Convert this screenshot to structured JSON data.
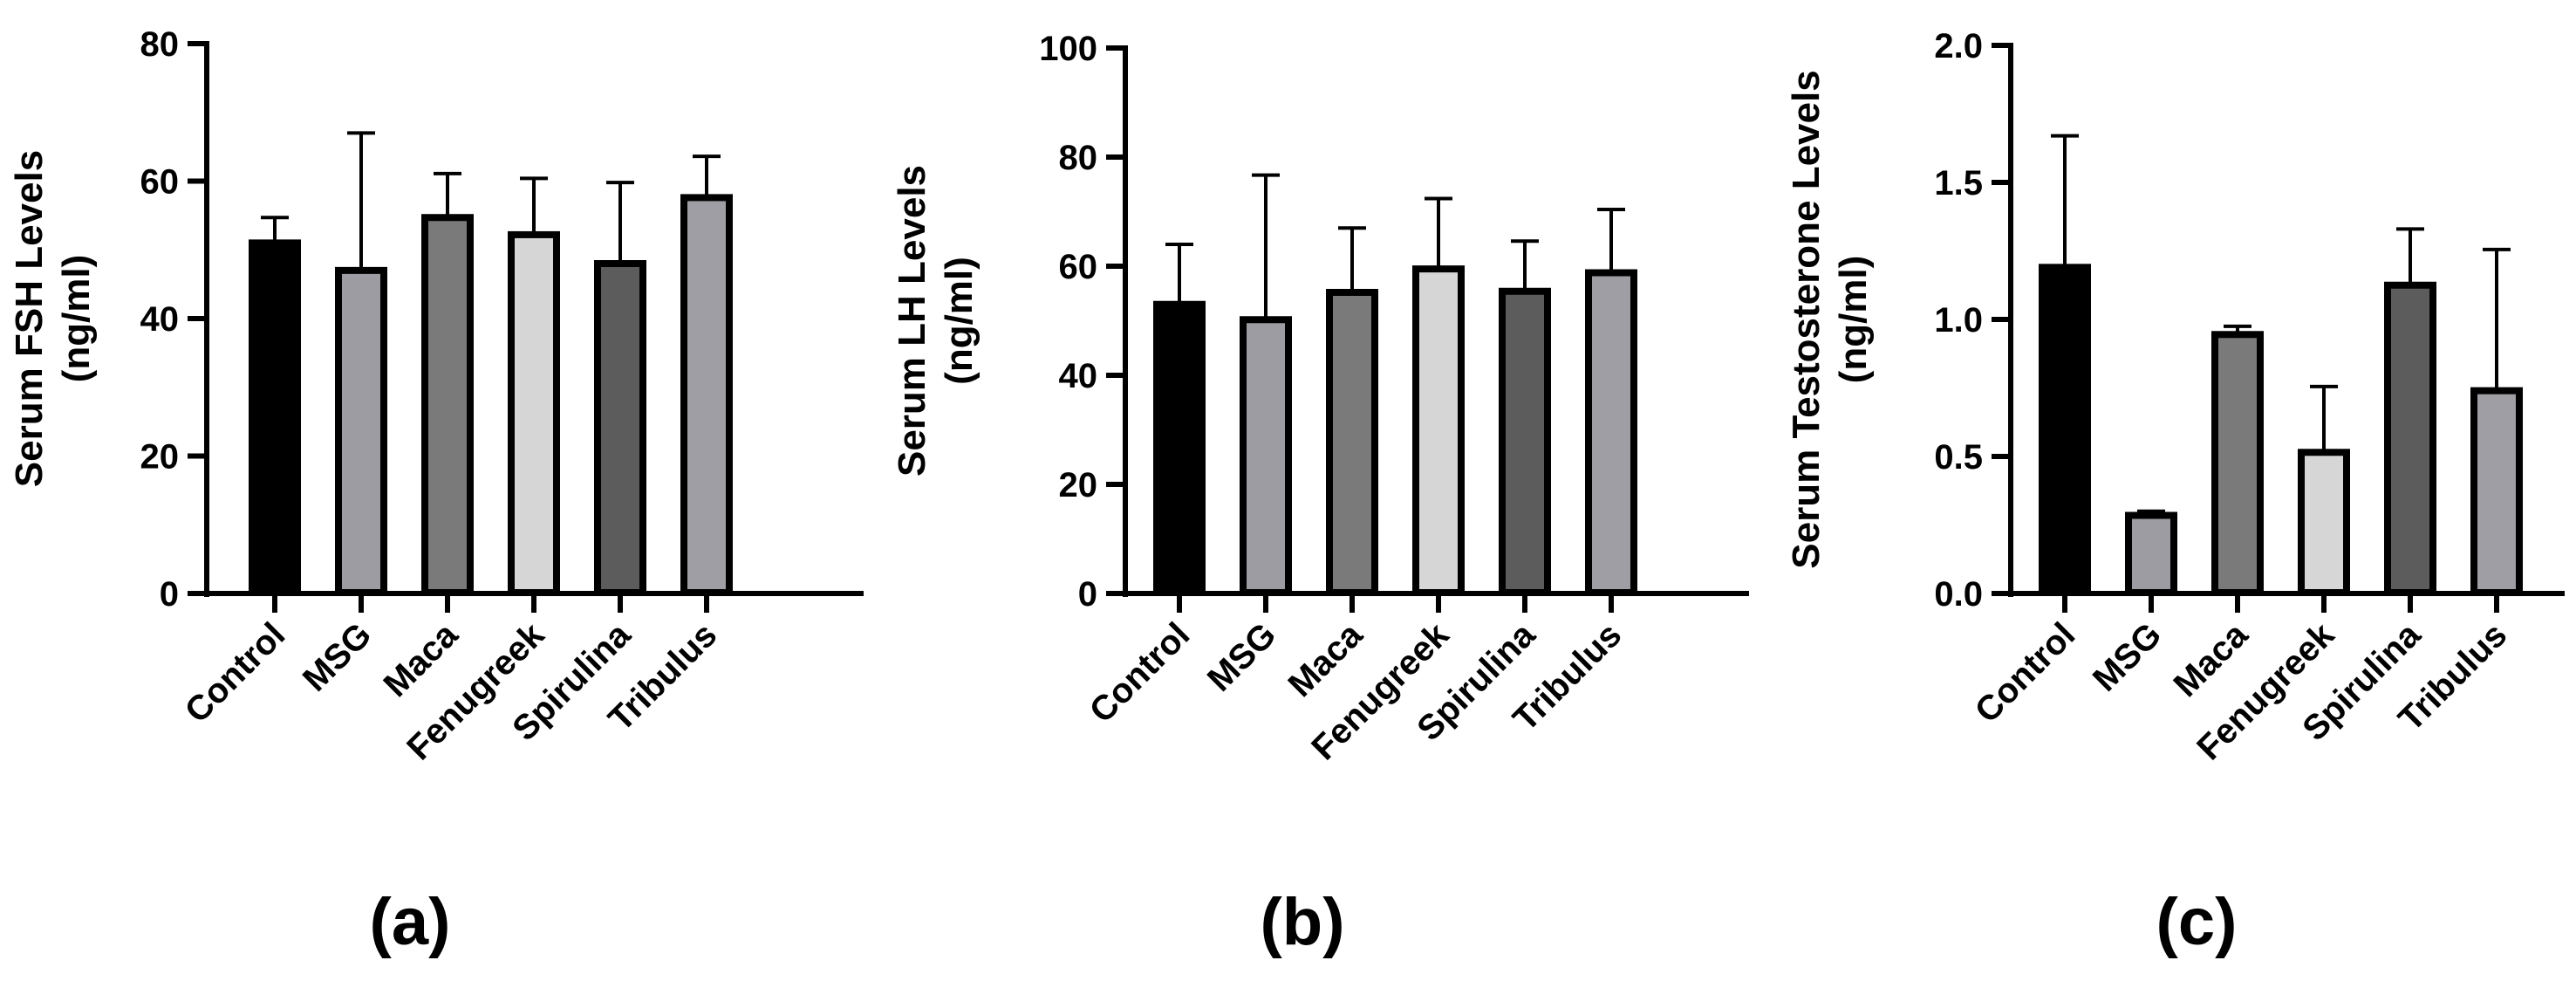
{
  "colors": {
    "background": "#ffffff",
    "axis": "#000000",
    "bar_outline": "#000000",
    "bar_fills": [
      "#000000",
      "#9c9ca2",
      "#7a7a7a",
      "#d6d6d6",
      "#5c5c5c",
      "#9e9ea4"
    ]
  },
  "chart_data": [
    {
      "type": "bar",
      "panel_label": "(a)",
      "title": "",
      "xlabel": "",
      "ylabel_line1": "Serum FSH Levels",
      "ylabel_line2": "(ng/ml)",
      "ylim": [
        0,
        80
      ],
      "yticks": [
        0,
        20,
        40,
        60,
        80
      ],
      "ytick_labels": [
        "0",
        "20",
        "40",
        "60",
        "80"
      ],
      "categories": [
        "Control",
        "MSG",
        "Maca",
        "Fenugreek",
        "Spirulina",
        "Tribulus"
      ],
      "values": [
        51,
        47,
        54.7,
        52.2,
        48,
        57.6
      ],
      "error_upper": [
        54.7,
        67,
        61.1,
        60.4,
        59.8,
        63.6
      ],
      "error_bars": "upper SD caps"
    },
    {
      "type": "bar",
      "panel_label": "(b)",
      "title": "",
      "xlabel": "",
      "ylabel_line1": "Serum LH Levels",
      "ylabel_line2": "(ng/ml)",
      "ylim": [
        0,
        100
      ],
      "yticks": [
        0,
        20,
        40,
        60,
        80,
        100
      ],
      "ytick_labels": [
        "0",
        "20",
        "40",
        "60",
        "80",
        "100"
      ],
      "categories": [
        "Control",
        "MSG",
        "Maca",
        "Fenugreek",
        "Spirulina",
        "Tribulus"
      ],
      "values": [
        53,
        50.2,
        55.2,
        59.5,
        55.4,
        58.8
      ],
      "error_upper": [
        64,
        76.7,
        67,
        72.4,
        64.6,
        70.4
      ],
      "error_bars": "upper SD caps"
    },
    {
      "type": "bar",
      "panel_label": "(c)",
      "title": "",
      "xlabel": "",
      "ylabel_line1": "Serum Testosterone Levels",
      "ylabel_line2": "(ng/ml)",
      "ylim": [
        0,
        2.0
      ],
      "yticks": [
        0,
        0.5,
        1.0,
        1.5,
        2.0
      ],
      "ytick_labels": [
        "0.0",
        "0.5",
        "1.0",
        "1.5",
        "2.0"
      ],
      "categories": [
        "Control",
        "MSG",
        "Maca",
        "Fenugreek",
        "Spirulina",
        "Tribulus"
      ],
      "values": [
        1.19,
        0.285,
        0.945,
        0.515,
        1.125,
        0.74
      ],
      "error_upper": [
        1.67,
        0.3,
        0.975,
        0.755,
        1.33,
        1.255
      ],
      "error_bars": "upper SD caps"
    }
  ]
}
